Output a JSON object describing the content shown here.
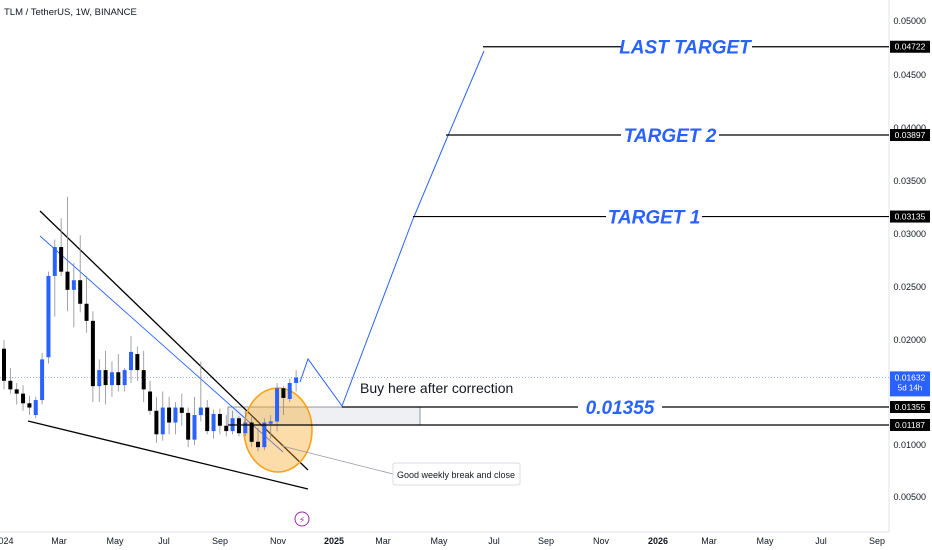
{
  "chart_data": {
    "type": "candlestick",
    "title": "TLM / TetherUS, 1W, BINANCE",
    "y_ticks": [
      "0.05000",
      "0.04500",
      "0.04000",
      "0.03500",
      "0.03000",
      "0.02500",
      "0.02000",
      "0.01000",
      "0.00500"
    ],
    "x_ticks": [
      "024",
      "Mar",
      "May",
      "Jul",
      "Sep",
      "Nov",
      "2025",
      "Mar",
      "May",
      "Jul",
      "Sep",
      "Nov",
      "2026",
      "Mar",
      "May",
      "Jul",
      "Sep"
    ],
    "ylim": [
      0.0035,
      0.0515
    ],
    "colors": {
      "up": "#2962ff",
      "down": "#000000",
      "accent": "#2962ff",
      "highlight": "#f7a21b"
    },
    "candles": [
      {
        "o": 0.019,
        "h": 0.0198,
        "l": 0.0152,
        "c": 0.016
      },
      {
        "o": 0.016,
        "h": 0.0172,
        "l": 0.0148,
        "c": 0.0152
      },
      {
        "o": 0.0152,
        "h": 0.0158,
        "l": 0.0138,
        "c": 0.0148
      },
      {
        "o": 0.0148,
        "h": 0.0156,
        "l": 0.0132,
        "c": 0.0139
      },
      {
        "o": 0.0139,
        "h": 0.0146,
        "l": 0.0128,
        "c": 0.0135
      },
      {
        "o": 0.0128,
        "h": 0.0145,
        "l": 0.0125,
        "c": 0.0142
      },
      {
        "o": 0.0142,
        "h": 0.0186,
        "l": 0.0138,
        "c": 0.018
      },
      {
        "o": 0.0182,
        "h": 0.0262,
        "l": 0.0176,
        "c": 0.0258
      },
      {
        "o": 0.0258,
        "h": 0.0292,
        "l": 0.022,
        "c": 0.0285
      },
      {
        "o": 0.0285,
        "h": 0.0312,
        "l": 0.0258,
        "c": 0.0262
      },
      {
        "o": 0.0262,
        "h": 0.0332,
        "l": 0.0225,
        "c": 0.0245
      },
      {
        "o": 0.0245,
        "h": 0.027,
        "l": 0.021,
        "c": 0.0254
      },
      {
        "o": 0.0254,
        "h": 0.0296,
        "l": 0.0224,
        "c": 0.0232
      },
      {
        "o": 0.0232,
        "h": 0.0258,
        "l": 0.0205,
        "c": 0.0216
      },
      {
        "o": 0.0216,
        "h": 0.0225,
        "l": 0.014,
        "c": 0.0155
      },
      {
        "o": 0.0155,
        "h": 0.018,
        "l": 0.014,
        "c": 0.017
      },
      {
        "o": 0.017,
        "h": 0.0188,
        "l": 0.0138,
        "c": 0.0156
      },
      {
        "o": 0.0156,
        "h": 0.0178,
        "l": 0.0145,
        "c": 0.0168
      },
      {
        "o": 0.0168,
        "h": 0.0185,
        "l": 0.015,
        "c": 0.0156
      },
      {
        "o": 0.0156,
        "h": 0.0172,
        "l": 0.015,
        "c": 0.017
      },
      {
        "o": 0.017,
        "h": 0.0202,
        "l": 0.0158,
        "c": 0.0187
      },
      {
        "o": 0.0185,
        "h": 0.0192,
        "l": 0.016,
        "c": 0.017
      },
      {
        "o": 0.017,
        "h": 0.0188,
        "l": 0.014,
        "c": 0.0152
      },
      {
        "o": 0.015,
        "h": 0.016,
        "l": 0.0128,
        "c": 0.0132
      },
      {
        "o": 0.0132,
        "h": 0.0145,
        "l": 0.0102,
        "c": 0.011
      },
      {
        "o": 0.011,
        "h": 0.015,
        "l": 0.0104,
        "c": 0.0135
      },
      {
        "o": 0.0135,
        "h": 0.0145,
        "l": 0.011,
        "c": 0.0121
      },
      {
        "o": 0.0121,
        "h": 0.014,
        "l": 0.011,
        "c": 0.0135
      },
      {
        "o": 0.0135,
        "h": 0.0148,
        "l": 0.0118,
        "c": 0.013
      },
      {
        "o": 0.013,
        "h": 0.0135,
        "l": 0.0098,
        "c": 0.0105
      },
      {
        "o": 0.0105,
        "h": 0.0145,
        "l": 0.01,
        "c": 0.0128
      },
      {
        "o": 0.0128,
        "h": 0.0178,
        "l": 0.0122,
        "c": 0.0135
      },
      {
        "o": 0.0135,
        "h": 0.0142,
        "l": 0.011,
        "c": 0.0113
      },
      {
        "o": 0.0113,
        "h": 0.0133,
        "l": 0.0106,
        "c": 0.0129
      },
      {
        "o": 0.0129,
        "h": 0.0134,
        "l": 0.011,
        "c": 0.0118
      },
      {
        "o": 0.0118,
        "h": 0.0128,
        "l": 0.0108,
        "c": 0.0113
      },
      {
        "o": 0.0113,
        "h": 0.0132,
        "l": 0.011,
        "c": 0.0125
      },
      {
        "o": 0.0125,
        "h": 0.0127,
        "l": 0.0108,
        "c": 0.0111
      },
      {
        "o": 0.0111,
        "h": 0.0132,
        "l": 0.0108,
        "c": 0.0121
      },
      {
        "o": 0.0121,
        "h": 0.0126,
        "l": 0.0098,
        "c": 0.0103
      },
      {
        "o": 0.0103,
        "h": 0.0116,
        "l": 0.0094,
        "c": 0.0098
      },
      {
        "o": 0.0098,
        "h": 0.0125,
        "l": 0.0095,
        "c": 0.0121
      },
      {
        "o": 0.012,
        "h": 0.0128,
        "l": 0.0106,
        "c": 0.0122
      },
      {
        "o": 0.0122,
        "h": 0.0158,
        "l": 0.0113,
        "c": 0.0153
      },
      {
        "o": 0.0153,
        "h": 0.0155,
        "l": 0.0128,
        "c": 0.0144
      },
      {
        "o": 0.0143,
        "h": 0.0162,
        "l": 0.014,
        "c": 0.0158
      },
      {
        "o": 0.0158,
        "h": 0.017,
        "l": 0.015,
        "c": 0.0163
      }
    ],
    "levels": [
      {
        "label": "LAST TARGET",
        "price": 0.04722,
        "badge": "0.04722"
      },
      {
        "label": "TARGET 2",
        "price": 0.03897,
        "badge": "0.03897"
      },
      {
        "label": "TARGET 1",
        "price": 0.03135,
        "badge": "0.03135"
      },
      {
        "label": "0.01355",
        "price": 0.01355,
        "badge": "0.01355"
      },
      {
        "label": "",
        "price": 0.01187,
        "badge": "0.01187"
      }
    ],
    "current_price": {
      "value": "0.01632",
      "countdown": "5d 14h"
    },
    "annotations": {
      "buy": "Buy here after correction",
      "break_note": "Good weekly break and close"
    }
  }
}
